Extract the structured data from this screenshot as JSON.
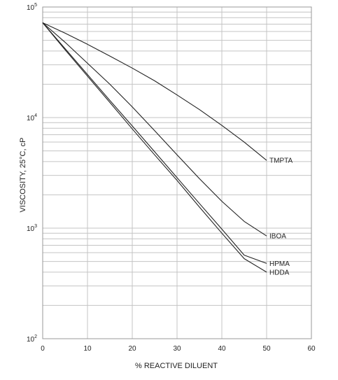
{
  "chart_data": {
    "type": "line",
    "title": "",
    "xlabel": "% REACTIVE DILUENT",
    "ylabel": "VISCOSITY, 25°C, cP",
    "xlim": [
      0,
      60
    ],
    "ylim": [
      100,
      100000
    ],
    "y_scale": "log",
    "x_ticks": [
      0,
      10,
      20,
      30,
      40,
      50,
      60
    ],
    "x_tick_labels": [
      "0",
      "10",
      "20",
      "30",
      "40",
      "50",
      "60"
    ],
    "y_ticks": [
      100,
      1000,
      10000,
      100000
    ],
    "y_tick_labels": [
      {
        "base": "10",
        "exp": "2"
      },
      {
        "base": "10",
        "exp": "3"
      },
      {
        "base": "10",
        "exp": "4"
      },
      {
        "base": "10",
        "exp": "5"
      }
    ],
    "grid": true,
    "line_color": "#222222",
    "grid_color": "#c4c4c4",
    "series": [
      {
        "name": "TMPTA",
        "x": [
          0,
          5,
          10,
          15,
          20,
          25,
          30,
          35,
          40,
          45,
          50
        ],
        "y": [
          72000,
          58000,
          46000,
          36000,
          28000,
          21500,
          16000,
          11800,
          8500,
          6000,
          4100
        ]
      },
      {
        "name": "IBOA",
        "x": [
          0,
          5,
          10,
          15,
          20,
          25,
          30,
          35,
          40,
          45,
          50
        ],
        "y": [
          72000,
          48000,
          31000,
          20000,
          12500,
          7600,
          4600,
          2800,
          1750,
          1150,
          850
        ]
      },
      {
        "name": "HPMA",
        "x": [
          0,
          5,
          10,
          15,
          20,
          25,
          30,
          35,
          40,
          45,
          50
        ],
        "y": [
          72000,
          42000,
          24500,
          14300,
          8400,
          4900,
          2860,
          1670,
          980,
          570,
          480
        ]
      },
      {
        "name": "HDDA",
        "x": [
          0,
          5,
          10,
          15,
          20,
          25,
          30,
          35,
          40,
          45,
          50
        ],
        "y": [
          72000,
          41000,
          23700,
          13700,
          7900,
          4600,
          2700,
          1550,
          900,
          530,
          400
        ]
      }
    ]
  }
}
